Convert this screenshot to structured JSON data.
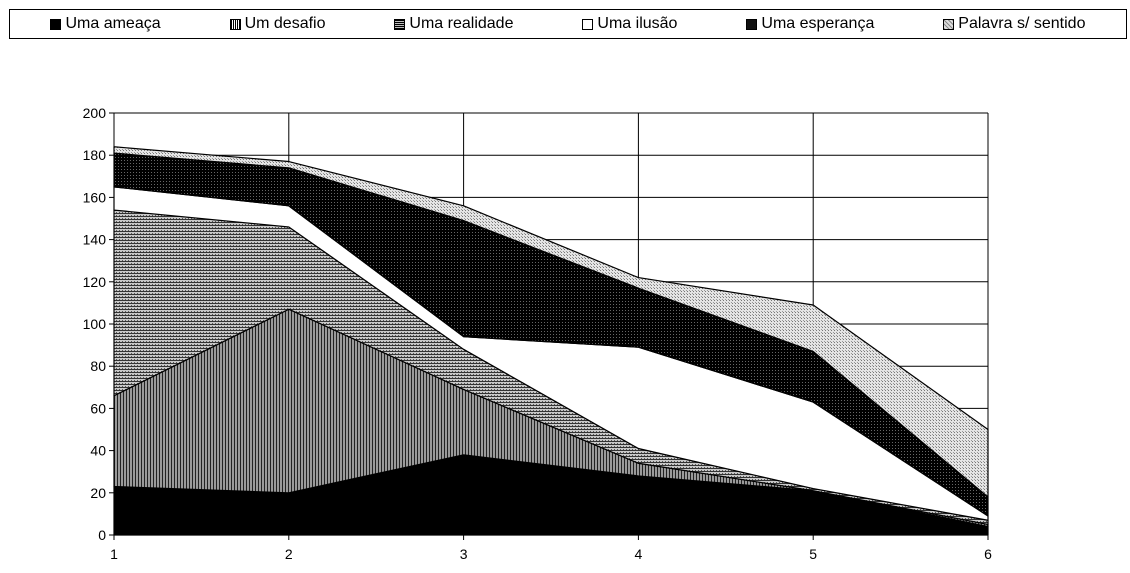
{
  "chart_data": {
    "type": "area",
    "stacked": true,
    "title": "",
    "xlabel": "",
    "ylabel": "",
    "x": [
      1,
      2,
      3,
      4,
      5,
      6
    ],
    "ylim": [
      0,
      200
    ],
    "yticks": [
      0,
      20,
      40,
      60,
      80,
      100,
      120,
      140,
      160,
      180,
      200
    ],
    "grid": true,
    "legend_position": "top",
    "series": [
      {
        "name": "Uma ameaça",
        "values": [
          23,
          20,
          38,
          28,
          21,
          4
        ],
        "pattern": "solid-black"
      },
      {
        "name": "Um desafio",
        "values": [
          43,
          87,
          31,
          6,
          0,
          1
        ],
        "pattern": "dense-vertical-lines"
      },
      {
        "name": "Uma realidade",
        "values": [
          88,
          39,
          19,
          7,
          1,
          2
        ],
        "pattern": "dense-grid"
      },
      {
        "name": "Uma ilusão",
        "values": [
          11,
          10,
          6,
          48,
          41,
          2
        ],
        "pattern": "white"
      },
      {
        "name": "Uma esperança",
        "values": [
          16,
          18,
          55,
          28,
          24,
          9
        ],
        "pattern": "dark-dots"
      },
      {
        "name": "Palavra s/ sentido",
        "values": [
          3,
          3,
          7,
          5,
          22,
          32
        ],
        "pattern": "light-dots"
      }
    ]
  }
}
